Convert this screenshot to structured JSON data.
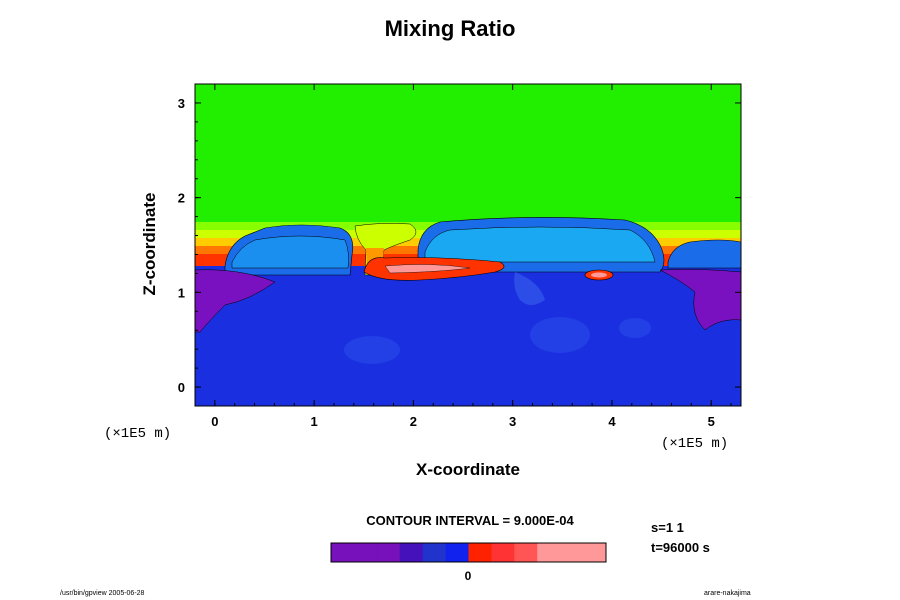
{
  "chart_data": {
    "type": "heatmap",
    "title": "Mixing Ratio",
    "xlabel": "X-coordinate",
    "ylabel": "Z-coordinate",
    "x_unit": "(×1E5 m)",
    "z_unit": "(×1E5 m)",
    "xlim": [
      -0.2,
      5.3
    ],
    "ylim": [
      -0.2,
      3.2
    ],
    "x_ticks": [
      "0",
      "1",
      "2",
      "3",
      "4",
      "5"
    ],
    "y_ticks": [
      "0",
      "1",
      "2",
      "3"
    ],
    "contour_interval": "CONTOUR INTERVAL = 9.000E-04",
    "colorbar_label": "0",
    "regions": [
      {
        "name": "upper",
        "z_range": [
          1.7,
          3.2
        ],
        "color": "#22ee00"
      },
      {
        "name": "transition",
        "z_range": [
          1.3,
          1.7
        ],
        "colors": [
          "#ccff00",
          "#ffcc00",
          "#ff7700",
          "#ff3300"
        ]
      },
      {
        "name": "lower",
        "z_range": [
          -0.2,
          1.3
        ],
        "color": "#1a30e0"
      }
    ],
    "colorbar_colors": [
      "#7711bb",
      "#7711bb",
      "#7711bb",
      "#4411bb",
      "#2233cc",
      "#1122ee",
      "#ff2200",
      "#ff3333",
      "#ff5555",
      "#ff9999",
      "#ff9999",
      "#ff9999"
    ]
  },
  "info": {
    "s": "s=1 1",
    "t": "t=96000 s"
  },
  "footer": {
    "left": "/usr/bin/gpview 2005-06-28",
    "right": "arare-nakajima"
  }
}
